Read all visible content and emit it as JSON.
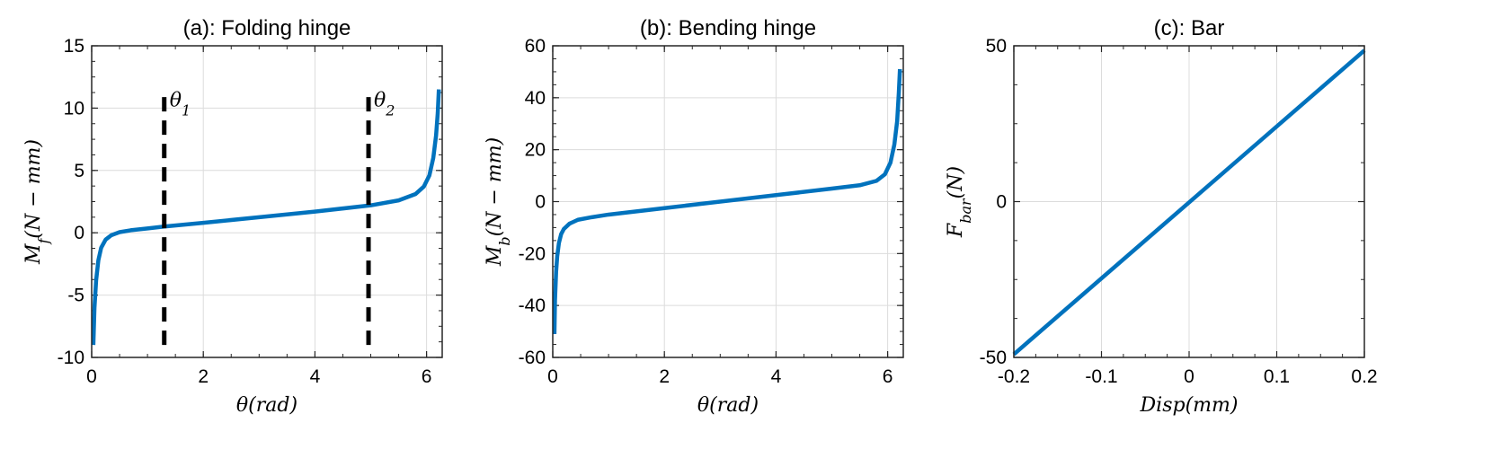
{
  "chart_data": [
    {
      "type": "line",
      "title": "(a): Folding hinge",
      "xlabel": "θ(rad)",
      "ylabel": "M_f(N − mm)",
      "xlim": [
        0,
        6.28
      ],
      "ylim": [
        -10,
        15
      ],
      "xticks": [
        0,
        2,
        4,
        6
      ],
      "xtick_labels": [
        "0",
        "2",
        "4",
        "6"
      ],
      "yticks": [
        -10,
        -5,
        0,
        5,
        10,
        15
      ],
      "ytick_labels": [
        "-10",
        "-5",
        "0",
        "5",
        "10",
        "15"
      ],
      "grid": true,
      "color": "#0072BD",
      "series": [
        {
          "x": [
            0.03,
            0.05,
            0.08,
            0.12,
            0.17,
            0.25,
            0.35,
            0.5,
            0.7,
            1.0,
            1.3,
            2.0,
            3.0,
            4.0,
            5.0,
            5.5,
            5.8,
            5.95,
            6.05,
            6.12,
            6.17,
            6.2,
            6.22
          ],
          "y": [
            -9.0,
            -6.0,
            -3.8,
            -2.2,
            -1.2,
            -0.55,
            -0.2,
            0.05,
            0.2,
            0.35,
            0.5,
            0.8,
            1.25,
            1.7,
            2.2,
            2.6,
            3.1,
            3.7,
            4.6,
            6.0,
            7.8,
            9.6,
            11.5
          ]
        }
      ],
      "annotations": [
        {
          "x": 1.3,
          "ymin": -9,
          "ymax": 11,
          "style": "dashed",
          "color": "#000000",
          "label": "θ",
          "sub": "1"
        },
        {
          "x": 4.96,
          "ymin": -9,
          "ymax": 11,
          "style": "dashed",
          "color": "#000000",
          "label": "θ",
          "sub": "2"
        }
      ]
    },
    {
      "type": "line",
      "title": "(b): Bending hinge",
      "xlabel": "θ(rad)",
      "ylabel": "M_b(N − mm)",
      "xlim": [
        0,
        6.28
      ],
      "ylim": [
        -60,
        60
      ],
      "xticks": [
        0,
        2,
        4,
        6
      ],
      "xtick_labels": [
        "0",
        "2",
        "4",
        "6"
      ],
      "yticks": [
        -60,
        -40,
        -20,
        0,
        20,
        40,
        60
      ],
      "ytick_labels": [
        "-60",
        "-40",
        "-20",
        "0",
        "20",
        "40",
        "60"
      ],
      "grid": true,
      "color": "#0072BD",
      "series": [
        {
          "x": [
            0.03,
            0.04,
            0.06,
            0.08,
            0.11,
            0.15,
            0.2,
            0.3,
            0.45,
            0.7,
            1.0,
            2.0,
            3.0,
            4.0,
            5.0,
            5.5,
            5.8,
            5.95,
            6.05,
            6.12,
            6.17,
            6.2,
            6.22
          ],
          "y": [
            -51,
            -38,
            -27,
            -21,
            -16,
            -12.5,
            -10.5,
            -8.5,
            -7,
            -6,
            -5,
            -2.5,
            0,
            2.5,
            5,
            6.3,
            8,
            10.5,
            15,
            22,
            31,
            42,
            51
          ]
        }
      ]
    },
    {
      "type": "line",
      "title": "(c): Bar",
      "xlabel": "Disp(mm)",
      "ylabel": "F_bar(N)",
      "xlim": [
        -0.2,
        0.2
      ],
      "ylim": [
        -50,
        50
      ],
      "xticks": [
        -0.2,
        -0.1,
        0,
        0.1,
        0.2
      ],
      "xtick_labels": [
        "-0.2",
        "-0.1",
        "0",
        "0.1",
        "0.2"
      ],
      "yticks": [
        -50,
        0,
        50
      ],
      "ytick_labels": [
        "-50",
        "0",
        "50"
      ],
      "grid": true,
      "color": "#0072BD",
      "series": [
        {
          "x": [
            -0.2,
            0.2
          ],
          "y": [
            -49,
            48.5
          ]
        }
      ]
    }
  ]
}
